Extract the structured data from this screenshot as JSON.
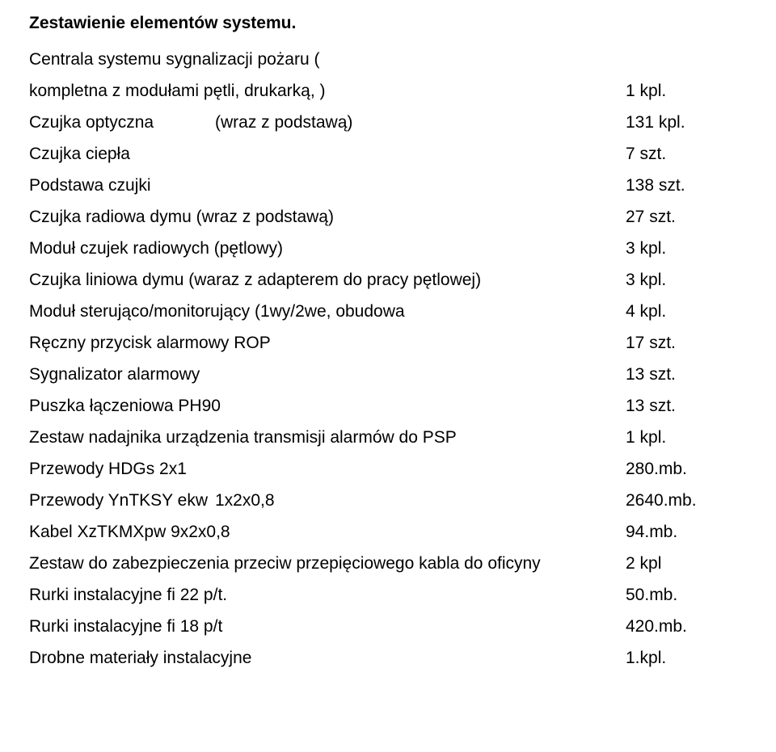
{
  "title": "Zestawienie elementów systemu.",
  "intro_line": "Centrala systemu sygnalizacji pożaru (",
  "rows": [
    {
      "label": "kompletna z modułami pętli, drukarką, )",
      "value": "1 kpl."
    },
    {
      "label_a": "Czujka optyczna",
      "label_b": "(wraz z podstawą)",
      "value": "131 kpl."
    },
    {
      "label": "Czujka ciepła",
      "value": "7 szt."
    },
    {
      "label": "Podstawa czujki",
      "value": "138 szt."
    },
    {
      "label": "Czujka radiowa dymu (wraz z podstawą)",
      "value": "27 szt."
    },
    {
      "label": "Moduł czujek radiowych (pętlowy)",
      "value": "3 kpl."
    },
    {
      "label": "Czujka liniowa dymu (waraz z adapterem do pracy pętlowej)",
      "value": "3 kpl."
    },
    {
      "label": "Moduł sterująco/monitorujący (1wy/2we, obudowa",
      "value": "4 kpl."
    },
    {
      "label": "Ręczny przycisk alarmowy ROP",
      "value": "17 szt."
    },
    {
      "label": "Sygnalizator alarmowy",
      "value": "13 szt."
    },
    {
      "label": "Puszka łączeniowa PH90",
      "value": "13 szt."
    },
    {
      "label": "Zestaw nadajnika urządzenia transmisji alarmów do PSP",
      "value": "1 kpl."
    },
    {
      "label": "Przewody HDGs 2x1",
      "value": "280.mb."
    },
    {
      "label_a": "Przewody YnTKSY ekw",
      "label_b": "1x2x0,8",
      "value": "2640.mb."
    },
    {
      "label": "Kabel XzTKMXpw 9x2x0,8",
      "value": "94.mb."
    },
    {
      "label": "Zestaw do zabezpieczenia przeciw przepięciowego kabla do oficyny",
      "value": "2 kpl"
    },
    {
      "label": "Rurki instalacyjne fi 22 p/t.",
      "value": "50.mb."
    },
    {
      "label": "Rurki instalacyjne fi 18 p/t",
      "value": "420.mb."
    },
    {
      "label": "Drobne materiały instalacyjne",
      "value": "1.kpl."
    }
  ]
}
